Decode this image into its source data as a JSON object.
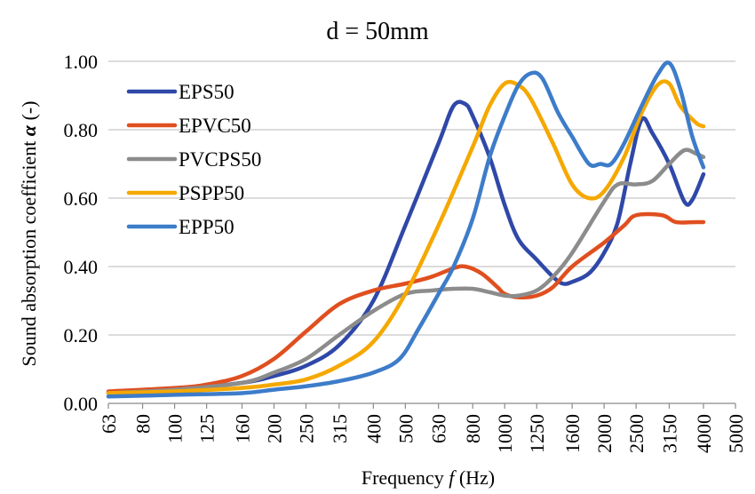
{
  "chart_data": {
    "type": "line",
    "title": "d = 50mm",
    "xlabel": "Frequency ",
    "xlabel_var": "f",
    "xlabel_unit": " (Hz)",
    "ylabel": "Sound absorption coefficient ",
    "ylabel_var": "α",
    "ylabel_unit": " (-)",
    "x_scale": "log",
    "xlim": [
      63,
      5000
    ],
    "ylim": [
      0,
      1
    ],
    "x_ticks": [
      "63",
      "80",
      "100",
      "125",
      "160",
      "200",
      "250",
      "315",
      "400",
      "500",
      "630",
      "800",
      "1000",
      "1250",
      "1600",
      "2000",
      "2500",
      "3150",
      "4000",
      "5000"
    ],
    "y_ticks": [
      "0.00",
      "0.20",
      "0.40",
      "0.60",
      "0.80",
      "1.00"
    ],
    "grid": "horizontal",
    "legend": "top-left",
    "series": [
      {
        "name": "EPS50",
        "color": "#2f48a8",
        "points": [
          [
            63,
            0.03
          ],
          [
            100,
            0.04
          ],
          [
            160,
            0.06
          ],
          [
            200,
            0.08
          ],
          [
            250,
            0.11
          ],
          [
            315,
            0.17
          ],
          [
            400,
            0.3
          ],
          [
            500,
            0.52
          ],
          [
            630,
            0.76
          ],
          [
            700,
            0.87
          ],
          [
            760,
            0.875
          ],
          [
            800,
            0.84
          ],
          [
            900,
            0.72
          ],
          [
            1000,
            0.58
          ],
          [
            1100,
            0.48
          ],
          [
            1250,
            0.42
          ],
          [
            1400,
            0.37
          ],
          [
            1500,
            0.35
          ],
          [
            1600,
            0.355
          ],
          [
            1800,
            0.38
          ],
          [
            2000,
            0.44
          ],
          [
            2200,
            0.53
          ],
          [
            2400,
            0.7
          ],
          [
            2600,
            0.83
          ],
          [
            2800,
            0.79
          ],
          [
            3150,
            0.7
          ],
          [
            3500,
            0.59
          ],
          [
            3700,
            0.595
          ],
          [
            4000,
            0.67
          ]
        ]
      },
      {
        "name": "EPVC50",
        "color": "#e04f1f",
        "points": [
          [
            63,
            0.035
          ],
          [
            100,
            0.045
          ],
          [
            125,
            0.055
          ],
          [
            160,
            0.08
          ],
          [
            200,
            0.13
          ],
          [
            250,
            0.21
          ],
          [
            315,
            0.29
          ],
          [
            400,
            0.33
          ],
          [
            500,
            0.35
          ],
          [
            600,
            0.37
          ],
          [
            700,
            0.395
          ],
          [
            760,
            0.4
          ],
          [
            850,
            0.38
          ],
          [
            950,
            0.34
          ],
          [
            1000,
            0.32
          ],
          [
            1100,
            0.31
          ],
          [
            1250,
            0.315
          ],
          [
            1400,
            0.34
          ],
          [
            1600,
            0.4
          ],
          [
            2000,
            0.47
          ],
          [
            2300,
            0.52
          ],
          [
            2500,
            0.55
          ],
          [
            3000,
            0.55
          ],
          [
            3300,
            0.53
          ],
          [
            3800,
            0.53
          ],
          [
            4000,
            0.53
          ]
        ]
      },
      {
        "name": "PVCPS50",
        "color": "#8c8c8c",
        "points": [
          [
            63,
            0.03
          ],
          [
            100,
            0.04
          ],
          [
            160,
            0.06
          ],
          [
            200,
            0.09
          ],
          [
            250,
            0.13
          ],
          [
            315,
            0.2
          ],
          [
            400,
            0.27
          ],
          [
            500,
            0.32
          ],
          [
            600,
            0.33
          ],
          [
            700,
            0.335
          ],
          [
            800,
            0.335
          ],
          [
            900,
            0.325
          ],
          [
            1000,
            0.315
          ],
          [
            1100,
            0.315
          ],
          [
            1250,
            0.33
          ],
          [
            1400,
            0.37
          ],
          [
            1600,
            0.44
          ],
          [
            2000,
            0.59
          ],
          [
            2200,
            0.64
          ],
          [
            2500,
            0.64
          ],
          [
            2800,
            0.65
          ],
          [
            3150,
            0.7
          ],
          [
            3500,
            0.74
          ],
          [
            3800,
            0.73
          ],
          [
            4000,
            0.72
          ]
        ]
      },
      {
        "name": "PSPP50",
        "color": "#f5a800",
        "points": [
          [
            63,
            0.03
          ],
          [
            100,
            0.035
          ],
          [
            160,
            0.045
          ],
          [
            200,
            0.055
          ],
          [
            250,
            0.07
          ],
          [
            315,
            0.11
          ],
          [
            400,
            0.18
          ],
          [
            500,
            0.32
          ],
          [
            630,
            0.52
          ],
          [
            800,
            0.75
          ],
          [
            900,
            0.87
          ],
          [
            1000,
            0.935
          ],
          [
            1100,
            0.93
          ],
          [
            1200,
            0.89
          ],
          [
            1400,
            0.76
          ],
          [
            1600,
            0.64
          ],
          [
            1800,
            0.6
          ],
          [
            2000,
            0.62
          ],
          [
            2300,
            0.72
          ],
          [
            2600,
            0.85
          ],
          [
            2900,
            0.93
          ],
          [
            3150,
            0.935
          ],
          [
            3400,
            0.87
          ],
          [
            3800,
            0.82
          ],
          [
            4000,
            0.81
          ]
        ]
      },
      {
        "name": "EPP50",
        "color": "#3d7cc9",
        "points": [
          [
            63,
            0.02
          ],
          [
            100,
            0.025
          ],
          [
            160,
            0.03
          ],
          [
            200,
            0.04
          ],
          [
            250,
            0.05
          ],
          [
            315,
            0.065
          ],
          [
            400,
            0.09
          ],
          [
            480,
            0.13
          ],
          [
            550,
            0.22
          ],
          [
            630,
            0.32
          ],
          [
            700,
            0.4
          ],
          [
            800,
            0.54
          ],
          [
            900,
            0.72
          ],
          [
            1000,
            0.84
          ],
          [
            1100,
            0.93
          ],
          [
            1200,
            0.965
          ],
          [
            1300,
            0.95
          ],
          [
            1450,
            0.85
          ],
          [
            1600,
            0.78
          ],
          [
            1800,
            0.7
          ],
          [
            1950,
            0.7
          ],
          [
            2100,
            0.7
          ],
          [
            2300,
            0.76
          ],
          [
            2600,
            0.87
          ],
          [
            2900,
            0.96
          ],
          [
            3150,
            0.995
          ],
          [
            3400,
            0.92
          ],
          [
            3700,
            0.78
          ],
          [
            4000,
            0.69
          ]
        ]
      }
    ]
  }
}
